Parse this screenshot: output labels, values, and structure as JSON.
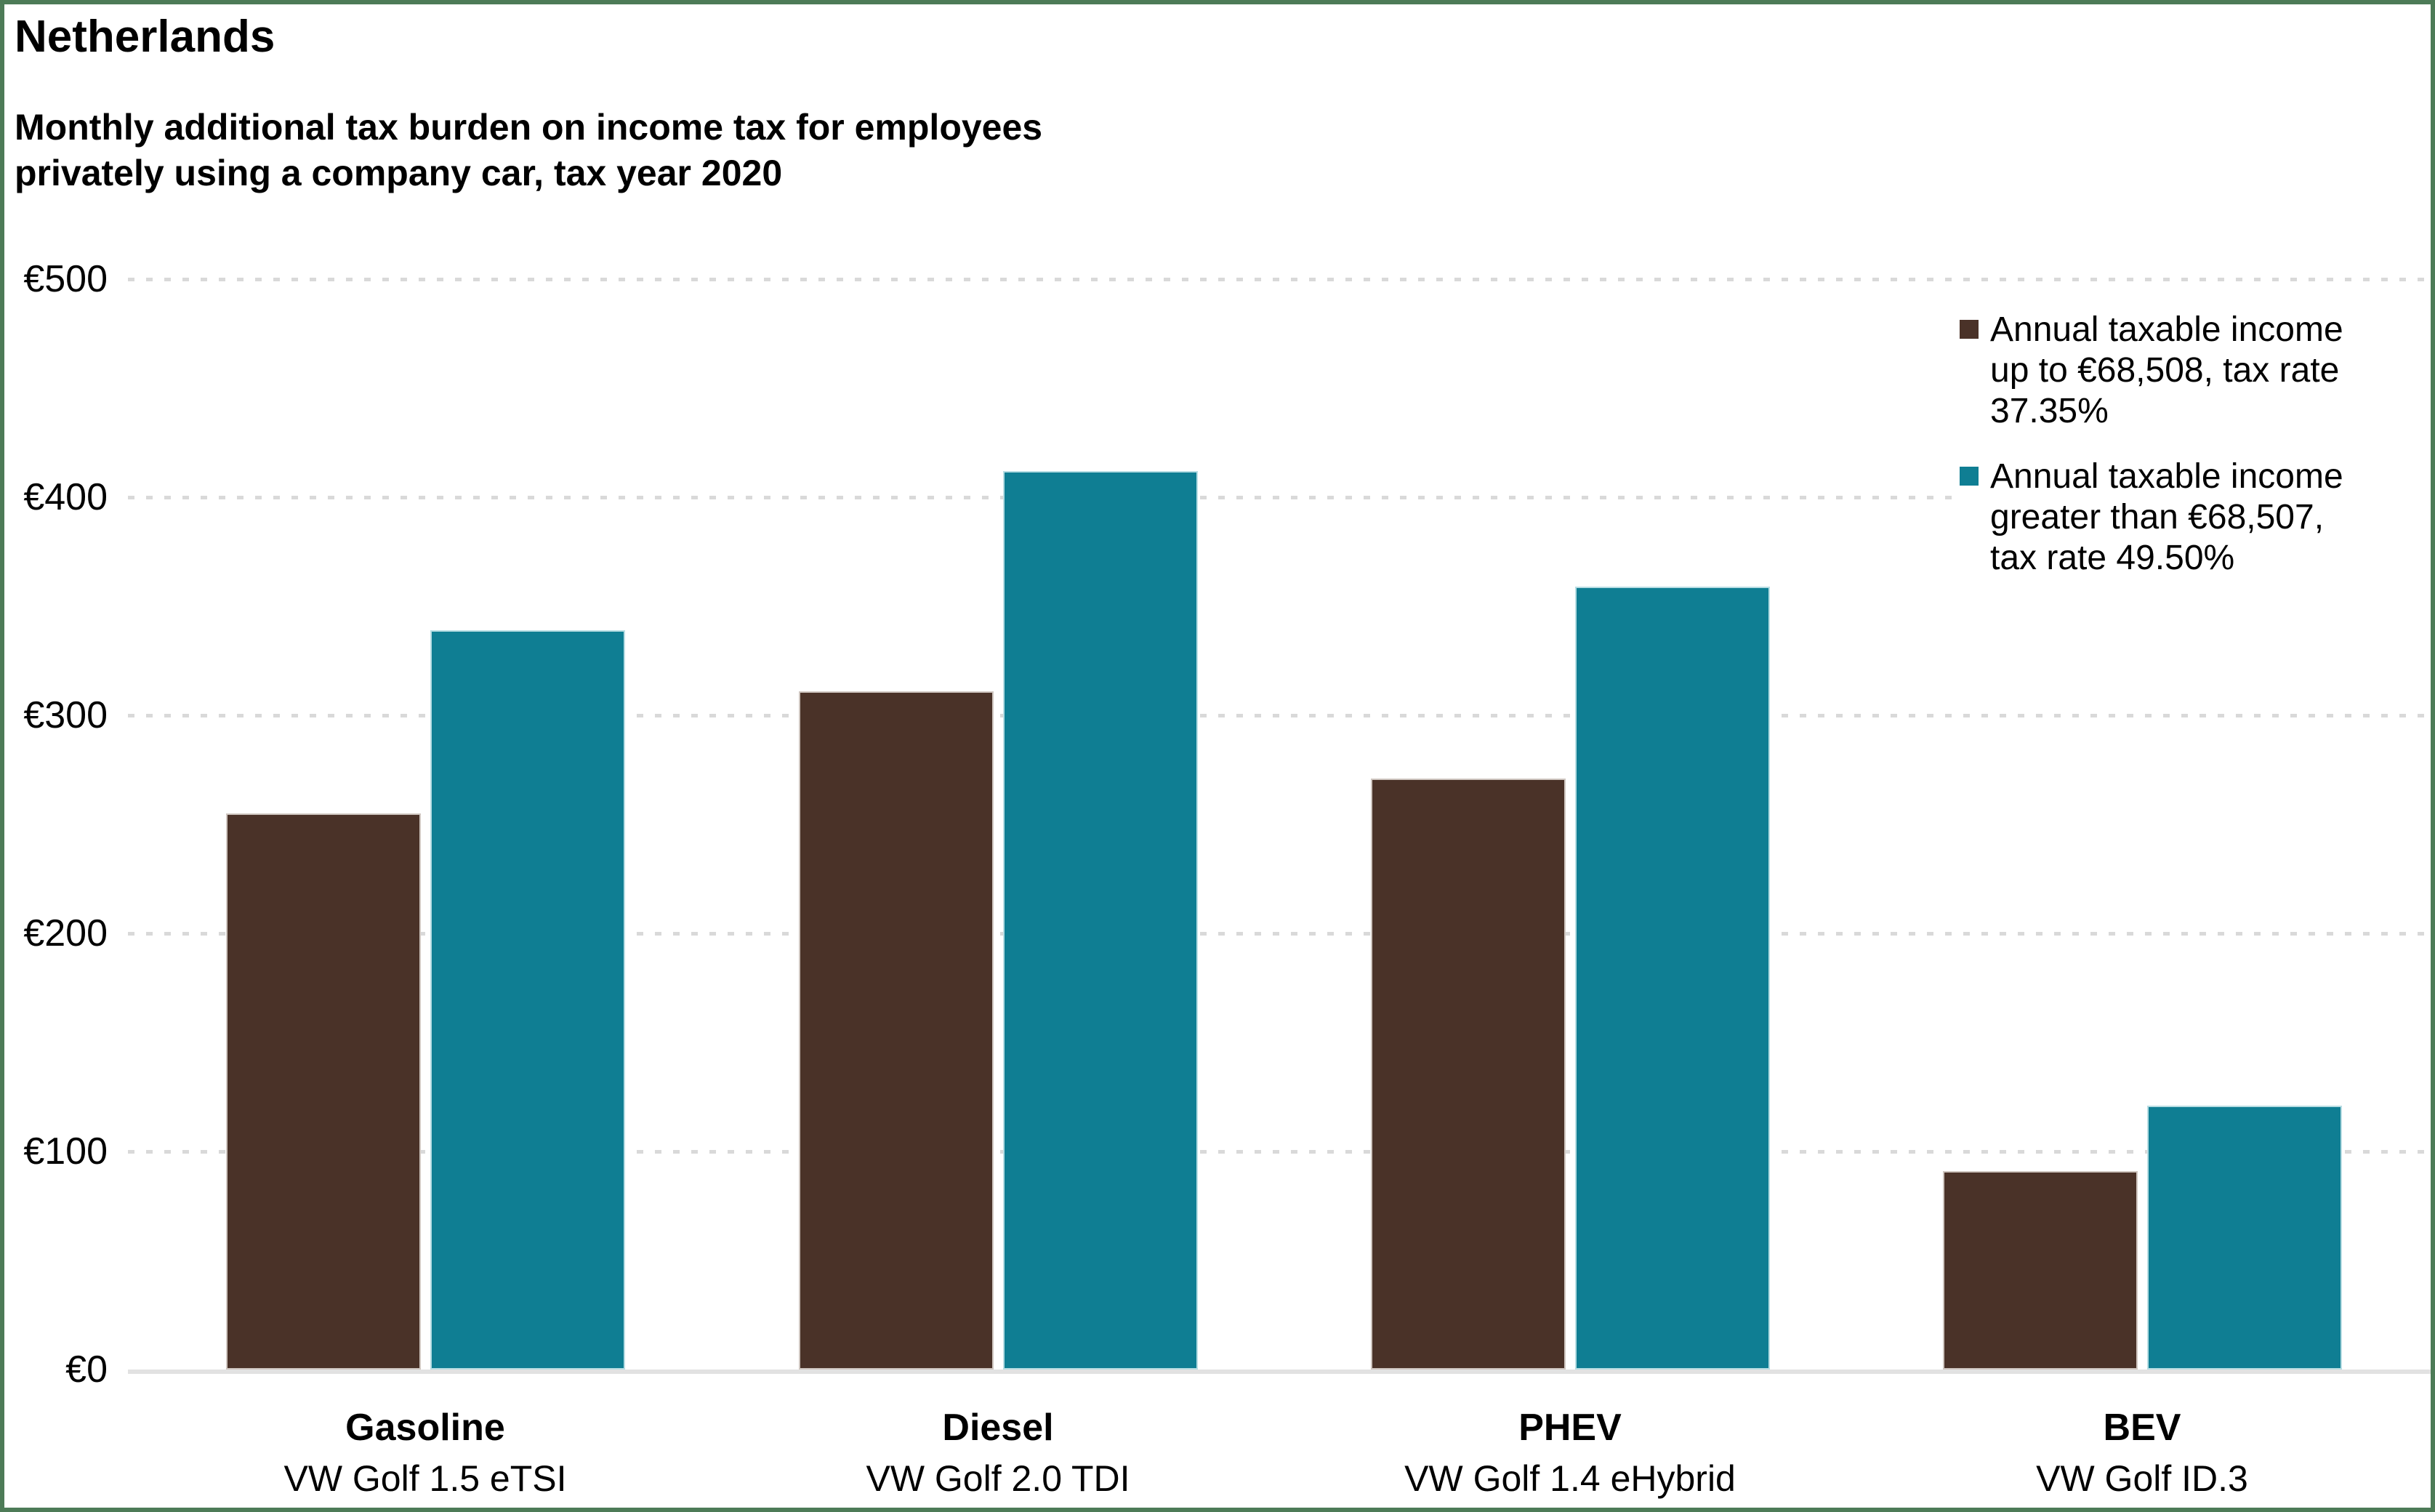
{
  "title": "Netherlands",
  "subtitle": "Monthly additional tax burden on income tax for employees\nprivately using a company car, tax year 2020",
  "chart_data": {
    "type": "bar",
    "title": "Netherlands",
    "subtitle": "Monthly additional tax burden on income tax for employees privately using a company car, tax year 2020",
    "currency": "€",
    "categories": [
      {
        "fuel": "Gasoline",
        "model": "VW Golf 1.5 eTSI"
      },
      {
        "fuel": "Diesel",
        "model": "VW Golf 2.0 TDI"
      },
      {
        "fuel": "PHEV",
        "model": "VW Golf 1.4 eHybrid"
      },
      {
        "fuel": "BEV",
        "model": "VW Golf ID.3"
      }
    ],
    "series": [
      {
        "name": "Annual taxable income up to €68,508, tax rate 37.35%",
        "label_lines": [
          "Annual taxable income",
          "up to €68,508, tax rate",
          "37.35%"
        ],
        "color": "#4a3228",
        "border_color": "#cfc6c0",
        "values": [
          255,
          311,
          271,
          91
        ]
      },
      {
        "name": "Annual taxable income greater than €68,507, tax rate 49.50%",
        "label_lines": [
          "Annual taxable income",
          "greater than €68,507,",
          "tax rate 49.50%"
        ],
        "color": "#0f7e93",
        "border_color": "#b7dde3",
        "values": [
          339,
          412,
          359,
          121
        ]
      }
    ],
    "y_axis": {
      "min": 0,
      "max": 500,
      "tick_values": [
        0,
        100,
        200,
        300,
        400,
        500
      ],
      "tick_labels": [
        "€0",
        "€100",
        "€200",
        "€300",
        "€400",
        "€500"
      ],
      "gridlines": "dashed"
    },
    "legend_position": "right",
    "grid_color": "#d9d9d9",
    "axis_color": "#e2e2e2",
    "frame_color": "#4d7b57",
    "background_color": "#ffffff"
  }
}
